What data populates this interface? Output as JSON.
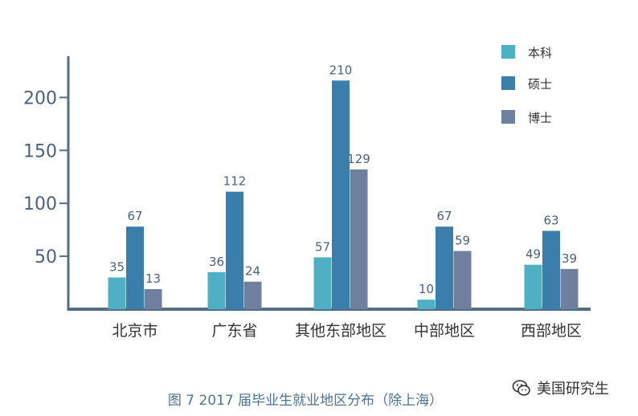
{
  "chart_data": {
    "type": "bar",
    "categories": [
      "北京市",
      "广东省",
      "其他东部地区",
      "中部地区",
      "西部地区"
    ],
    "series": [
      {
        "name": "本科",
        "values": [
          35,
          36,
          57,
          10,
          49
        ],
        "color": "#4eb0c5"
      },
      {
        "name": "硕士",
        "values": [
          67,
          112,
          210,
          67,
          63
        ],
        "color": "#3a7fab"
      },
      {
        "name": "博士",
        "values": [
          13,
          24,
          129,
          59,
          39
        ],
        "color": "#6f7f9e"
      }
    ],
    "bar_heights": [
      [
        30,
        35,
        49,
        9,
        42
      ],
      [
        78,
        111,
        216,
        78,
        74
      ],
      [
        19,
        26,
        132,
        55,
        38
      ]
    ],
    "yticks": [
      50,
      100,
      150,
      200
    ],
    "ylim": [
      0,
      220
    ],
    "legend_position": "top-right",
    "grid": false,
    "axis_color": "#556e87",
    "label_color": "#4a6282",
    "category_label_color": "#333333"
  },
  "caption": "图 7  2017 届毕业生就业地区分布（除上海）",
  "watermark": {
    "text": "美国研究生",
    "icon": "wechat-icon"
  }
}
